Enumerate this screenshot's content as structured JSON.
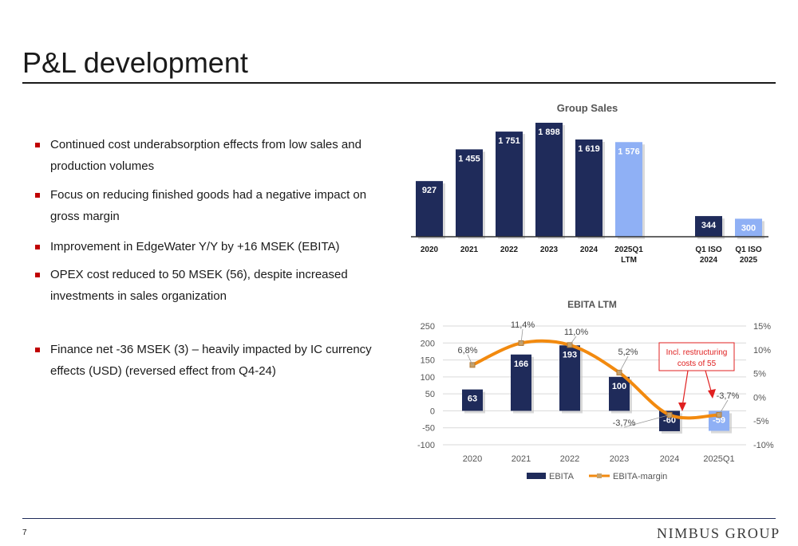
{
  "page": {
    "title": "P&L development",
    "page_number": "7",
    "logo_text": "NIMBUS GROUP"
  },
  "bullets": [
    "Continued cost underabsorption effects from low sales and production volumes",
    "Focus on reducing finished goods had a negative impact on gross margin",
    "Improvement in EdgeWater Y/Y by +16 MSEK (EBITA)",
    "OPEX cost reduced to 50 MSEK (56), despite increased investments in sales organization",
    "Finance net -36 MSEK (3)  – heavily impacted by IC currency effects (USD) (reversed effect from Q4-24)"
  ],
  "colors": {
    "dark_bar": "#1f2b5a",
    "light_bar": "#8fb0f5",
    "margin_line": "#f28a0f",
    "callout": "#e02020"
  },
  "chart_data": [
    {
      "type": "bar",
      "title": "Group Sales",
      "categories": [
        [
          "2020"
        ],
        [
          "2021"
        ],
        [
          "2022"
        ],
        [
          "2023"
        ],
        [
          "2024"
        ],
        [
          "2025Q1",
          "LTM"
        ],
        [
          "Q1 ISO",
          "2024"
        ],
        [
          "Q1 ISO",
          "2025"
        ]
      ],
      "values": [
        927,
        1455,
        1751,
        1898,
        1619,
        1576,
        344,
        300
      ],
      "value_labels": [
        "927",
        "1 455",
        "1 751",
        "1 898",
        "1 619",
        "1 576",
        "344",
        "300"
      ],
      "bar_colors": [
        "dark",
        "dark",
        "dark",
        "dark",
        "dark",
        "light",
        "dark",
        "light"
      ]
    },
    {
      "type": "bar",
      "title": "EBITA LTM",
      "categories": [
        "2020",
        "2021",
        "2022",
        "2023",
        "2024",
        "2025Q1"
      ],
      "series": [
        {
          "name": "EBITA",
          "type": "bar",
          "axis": "left",
          "values": [
            63,
            166,
            193,
            100,
            -60,
            -59
          ],
          "value_labels": [
            "63",
            "166",
            "193",
            "100",
            "-60",
            "-59"
          ],
          "bar_colors": [
            "dark",
            "dark",
            "dark",
            "dark",
            "dark",
            "light"
          ]
        },
        {
          "name": "EBITA-margin",
          "type": "line",
          "axis": "right",
          "values": [
            6.8,
            11.4,
            11.0,
            5.2,
            -3.7,
            -3.7
          ],
          "value_labels": [
            "6,8%",
            "11,4%",
            "11,0%",
            "5,2%",
            "-3,7%",
            "-3,7%"
          ]
        }
      ],
      "left_axis": {
        "ticks": [
          "250",
          "200",
          "150",
          "100",
          "50",
          "0",
          "-50",
          "-100"
        ],
        "ylim": [
          -100,
          250
        ]
      },
      "right_axis": {
        "ticks": [
          "15%",
          "10%",
          "5%",
          "0%",
          "-5%",
          "-10%"
        ],
        "ylim": [
          -10,
          15
        ]
      },
      "grid": true,
      "legend_position": "bottom",
      "annotation": "Incl. restructuring costs of 55"
    }
  ]
}
